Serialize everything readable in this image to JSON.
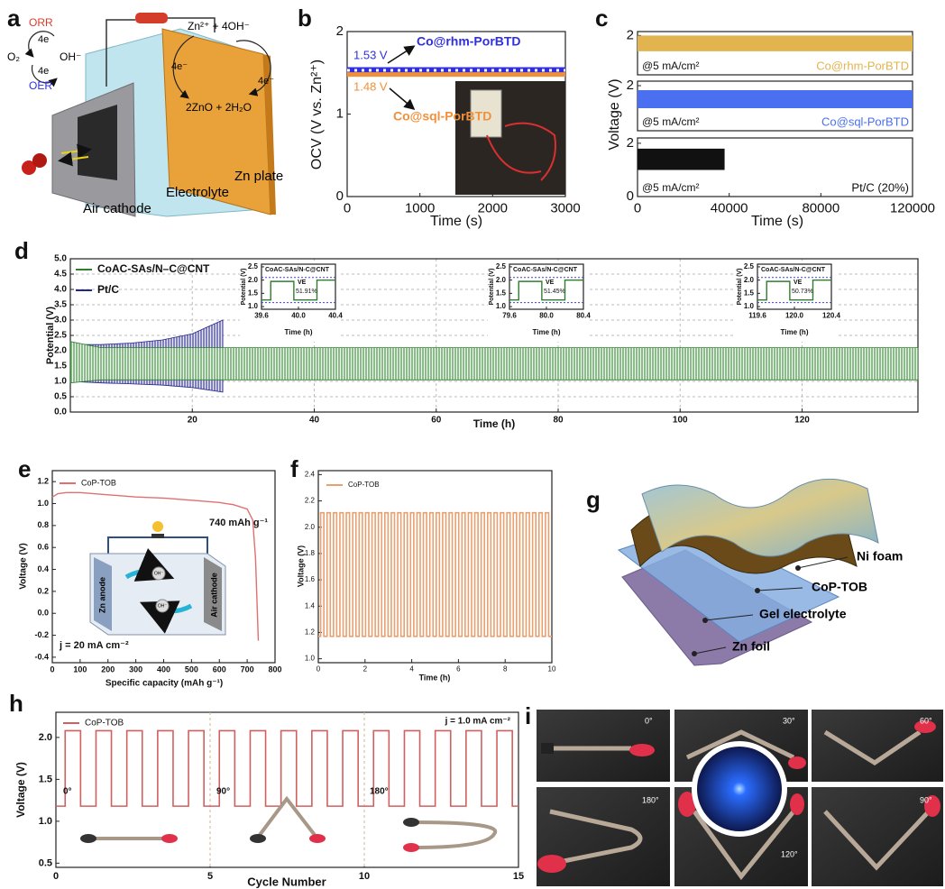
{
  "panel_labels": [
    "a",
    "b",
    "c",
    "d",
    "e",
    "f",
    "g",
    "h",
    "i"
  ],
  "diagram_a": {
    "texts": [
      "ORR",
      "4e",
      "O₂",
      "4e",
      "OH⁻",
      "OER",
      "Zn²⁺ + 4OH⁻",
      "4e⁻",
      "4e⁻",
      "2ZnO + 2H₂O",
      "Air cathode",
      "Electrolyte",
      "Zn plate"
    ]
  },
  "diagram_e": {
    "texts": [
      "Zn anode",
      "Air cathode",
      "OH⁻",
      "OH⁻"
    ]
  },
  "diagram_g": {
    "texts": [
      "Ni foam",
      "CoP-TOB",
      "Gel electrolyte",
      "Zn foil"
    ]
  },
  "photos_i": {
    "labels": [
      "0°",
      "30°",
      "60°",
      "180°",
      "120°",
      "90°"
    ]
  },
  "chart_data": [
    {
      "type": "line",
      "xlabel": "Time (s)",
      "ylabel": "OCV (V vs. Zn²⁺)",
      "xlim": [
        0,
        3000
      ],
      "ylim": [
        0,
        2
      ],
      "xticks": [
        0,
        1000,
        2000,
        3000
      ],
      "yticks": [
        0,
        1,
        2
      ],
      "x": [
        0,
        3000
      ],
      "series": [
        {
          "name": "Co@rhm-PorBTD",
          "color": "#2f2fe0",
          "values": [
            1.53,
            1.53
          ]
        },
        {
          "name": "Co@sql-PorBTD",
          "color": "#f0903a",
          "values": [
            1.48,
            1.48
          ]
        }
      ],
      "annotations": [
        "1.53 V",
        "1.48 V"
      ]
    },
    {
      "type": "band",
      "xlabel": "Time (s)",
      "ylabel": "Voltage (V)",
      "xlim": [
        0,
        120000
      ],
      "xticks": [
        0,
        40000,
        80000,
        120000
      ],
      "panels": [
        {
          "name": "Co@rhm-PorBTD",
          "note": "@5 mA/cm²",
          "color": "#e2b450",
          "ylim": [
            0,
            2.2
          ],
          "yticks": [
            2
          ],
          "x": [
            0,
            120000
          ],
          "lower": [
            1.2,
            1.2
          ],
          "upper": [
            2.0,
            2.0
          ]
        },
        {
          "name": "Co@sql-PorBTD",
          "note": "@5 mA/cm²",
          "color": "#4a6ff0",
          "ylim": [
            0,
            2.2
          ],
          "yticks": [
            2
          ],
          "x": [
            0,
            120000
          ],
          "lower": [
            1.0,
            1.0
          ],
          "upper": [
            1.8,
            1.8
          ]
        },
        {
          "name": "Pt/C (20%)",
          "note": "@5 mA/cm²",
          "color": "#111111",
          "ylim": [
            0,
            2.2
          ],
          "yticks": [
            0,
            2
          ],
          "x": [
            0,
            38000
          ],
          "lower": [
            1.0,
            1.0
          ],
          "upper": [
            1.8,
            1.8
          ]
        }
      ]
    },
    {
      "type": "band",
      "xlabel": "Time (h)",
      "ylabel": "Potential (V)",
      "grid": true,
      "xlim": [
        0,
        139
      ],
      "ylim": [
        0,
        5
      ],
      "xticks": [
        20,
        40,
        60,
        80,
        100,
        120
      ],
      "yticks": [
        {
          "value": 0,
          "label": "0.0"
        },
        {
          "value": 0.5,
          "label": "0.5"
        },
        {
          "value": 1,
          "label": "1.0"
        },
        {
          "value": 1.5,
          "label": "1.5"
        },
        {
          "value": 2,
          "label": "2.0"
        },
        {
          "value": 2.5,
          "label": "2.5"
        },
        {
          "value": 3,
          "label": "3.0"
        },
        {
          "value": 3.5,
          "label": "3.5"
        },
        {
          "value": 4,
          "label": "4.0"
        },
        {
          "value": 4.5,
          "label": "4.5"
        },
        {
          "value": 5,
          "label": "5.0"
        }
      ],
      "series": [
        {
          "name": "Pt/C",
          "color": "#25258a",
          "x": [
            0,
            5,
            10,
            15,
            20,
            25
          ],
          "upper": [
            2.2,
            2.2,
            2.25,
            2.35,
            2.55,
            3.0
          ],
          "lower": [
            1.0,
            0.95,
            0.92,
            0.88,
            0.8,
            0.65
          ]
        },
        {
          "name": "CoAC-SAs/N–C@CNT",
          "color": "#2f7d2f",
          "x": [
            0,
            5,
            139
          ],
          "upper": [
            2.3,
            2.1,
            2.1
          ],
          "lower": [
            0.95,
            1.05,
            1.05
          ]
        }
      ],
      "insets": [
        {
          "legend": "CoAC-SAs/N-C@CNT",
          "ve_label": "VE",
          "ve": "51.91%",
          "xlabel": "Time (h)",
          "ylabel": "Potential (V)",
          "xlim": [
            39.6,
            40.4
          ],
          "xticks": [
            39.6,
            {
              "value": 40,
              "label": "40.0"
            },
            40.4
          ],
          "ylim": [
            0.9,
            2.6
          ],
          "yticks": [
            {
              "value": 1,
              "label": "1.0"
            },
            1.5,
            {
              "value": 2,
              "label": "2.0"
            },
            2.5
          ],
          "dashed_levels": [
            1.15,
            2.1
          ],
          "x": [
            39.6,
            39.7,
            39.7,
            39.95,
            39.95,
            40.2,
            40.2,
            40.4
          ],
          "values": [
            1.25,
            1.25,
            1.95,
            1.95,
            1.25,
            1.25,
            2.0,
            2.0
          ]
        },
        {
          "legend": "CoAC-SAs/N-C@CNT",
          "ve_label": "VE",
          "ve": "51.45%",
          "xlabel": "Time (h)",
          "ylabel": "Potential (V)",
          "xlim": [
            79.6,
            80.4
          ],
          "xticks": [
            79.6,
            {
              "value": 80,
              "label": "80.0"
            },
            80.4
          ],
          "ylim": [
            0.9,
            2.6
          ],
          "yticks": [
            {
              "value": 1,
              "label": "1.0"
            },
            1.5,
            {
              "value": 2,
              "label": "2.0"
            },
            2.5
          ],
          "dashed_levels": [
            1.15,
            2.1
          ],
          "x": [
            79.6,
            79.7,
            79.7,
            79.95,
            79.95,
            80.2,
            80.2,
            80.4
          ],
          "values": [
            1.25,
            1.25,
            1.95,
            1.95,
            1.25,
            1.25,
            2.0,
            2.0
          ]
        },
        {
          "legend": "CoAC-SAs/N-C@CNT",
          "ve_label": "VE",
          "ve": "50.73%",
          "xlabel": "Time (h)",
          "ylabel": "Potential (V)",
          "xlim": [
            119.6,
            120.4
          ],
          "xticks": [
            119.6,
            {
              "value": 120,
              "label": "120.0"
            },
            120.4
          ],
          "ylim": [
            0.9,
            2.6
          ],
          "yticks": [
            {
              "value": 1,
              "label": "1.0"
            },
            1.5,
            {
              "value": 2,
              "label": "2.0"
            },
            2.5
          ],
          "dashed_levels": [
            1.15,
            2.1
          ],
          "x": [
            119.6,
            119.7,
            119.7,
            119.95,
            119.95,
            120.2,
            120.2,
            120.4
          ],
          "values": [
            1.25,
            1.25,
            1.95,
            1.95,
            1.25,
            1.25,
            2.0,
            2.0
          ]
        }
      ]
    },
    {
      "type": "line",
      "xlabel": "Specific capacity (mAh g⁻¹)",
      "ylabel": "Voltage (V)",
      "xlim": [
        0,
        800
      ],
      "ylim": [
        -0.45,
        1.3
      ],
      "xticks": [
        0,
        100,
        200,
        300,
        400,
        500,
        600,
        700,
        800
      ],
      "yticks": [
        -0.4,
        -0.2,
        {
          "value": 0,
          "label": "0.0"
        },
        0.2,
        0.4,
        0.6,
        0.8,
        {
          "value": 1,
          "label": "1.0"
        },
        1.2
      ],
      "x": [
        0,
        20,
        50,
        100,
        200,
        300,
        400,
        500,
        600,
        650,
        700,
        720,
        730,
        740
      ],
      "series": [
        {
          "name": "CoP-TOB",
          "color": "#e07070",
          "values": [
            1.06,
            1.09,
            1.1,
            1.1,
            1.08,
            1.06,
            1.05,
            1.03,
            1.01,
            0.99,
            0.95,
            0.85,
            0.5,
            -0.25
          ]
        }
      ],
      "annotations": [
        "740 mAh g⁻¹",
        "j = 20 mA cm⁻²"
      ]
    },
    {
      "type": "cycling",
      "xlabel": "Time (h)",
      "ylabel": "Voltage (V)",
      "xlim": [
        0,
        10
      ],
      "ylim": [
        0.97,
        2.43
      ],
      "xticks": [
        0,
        2,
        4,
        6,
        8,
        10
      ],
      "yticks": [
        {
          "value": 1,
          "label": "1.0"
        },
        1.2,
        1.4,
        1.6,
        1.8,
        {
          "value": 2,
          "label": "2.0"
        },
        2.2,
        2.4
      ],
      "series": [
        {
          "name": "CoP-TOB",
          "color": "#e8a070",
          "high": 2.11,
          "low": 1.17,
          "start": 0.1,
          "period": 0.275
        }
      ]
    },
    {
      "type": "cycling",
      "xlabel": "Cycle Number",
      "ylabel": "Voltage (V)",
      "xlim": [
        0,
        15
      ],
      "ylim": [
        0.45,
        2.3
      ],
      "xticks": [
        0,
        5,
        10,
        15
      ],
      "yticks": [
        0.5,
        {
          "value": 1,
          "label": "1.0"
        },
        1.5,
        {
          "value": 2,
          "label": "2.0"
        }
      ],
      "vlines": [
        5,
        10
      ],
      "series": [
        {
          "name": "CoP-TOB",
          "color": "#d06060",
          "high": 2.08,
          "low": 1.18,
          "start": 0.3,
          "period": 1.0
        }
      ],
      "annotations": [
        "0°",
        "90°",
        "180°",
        "j = 1.0 mA cm⁻²"
      ]
    }
  ]
}
